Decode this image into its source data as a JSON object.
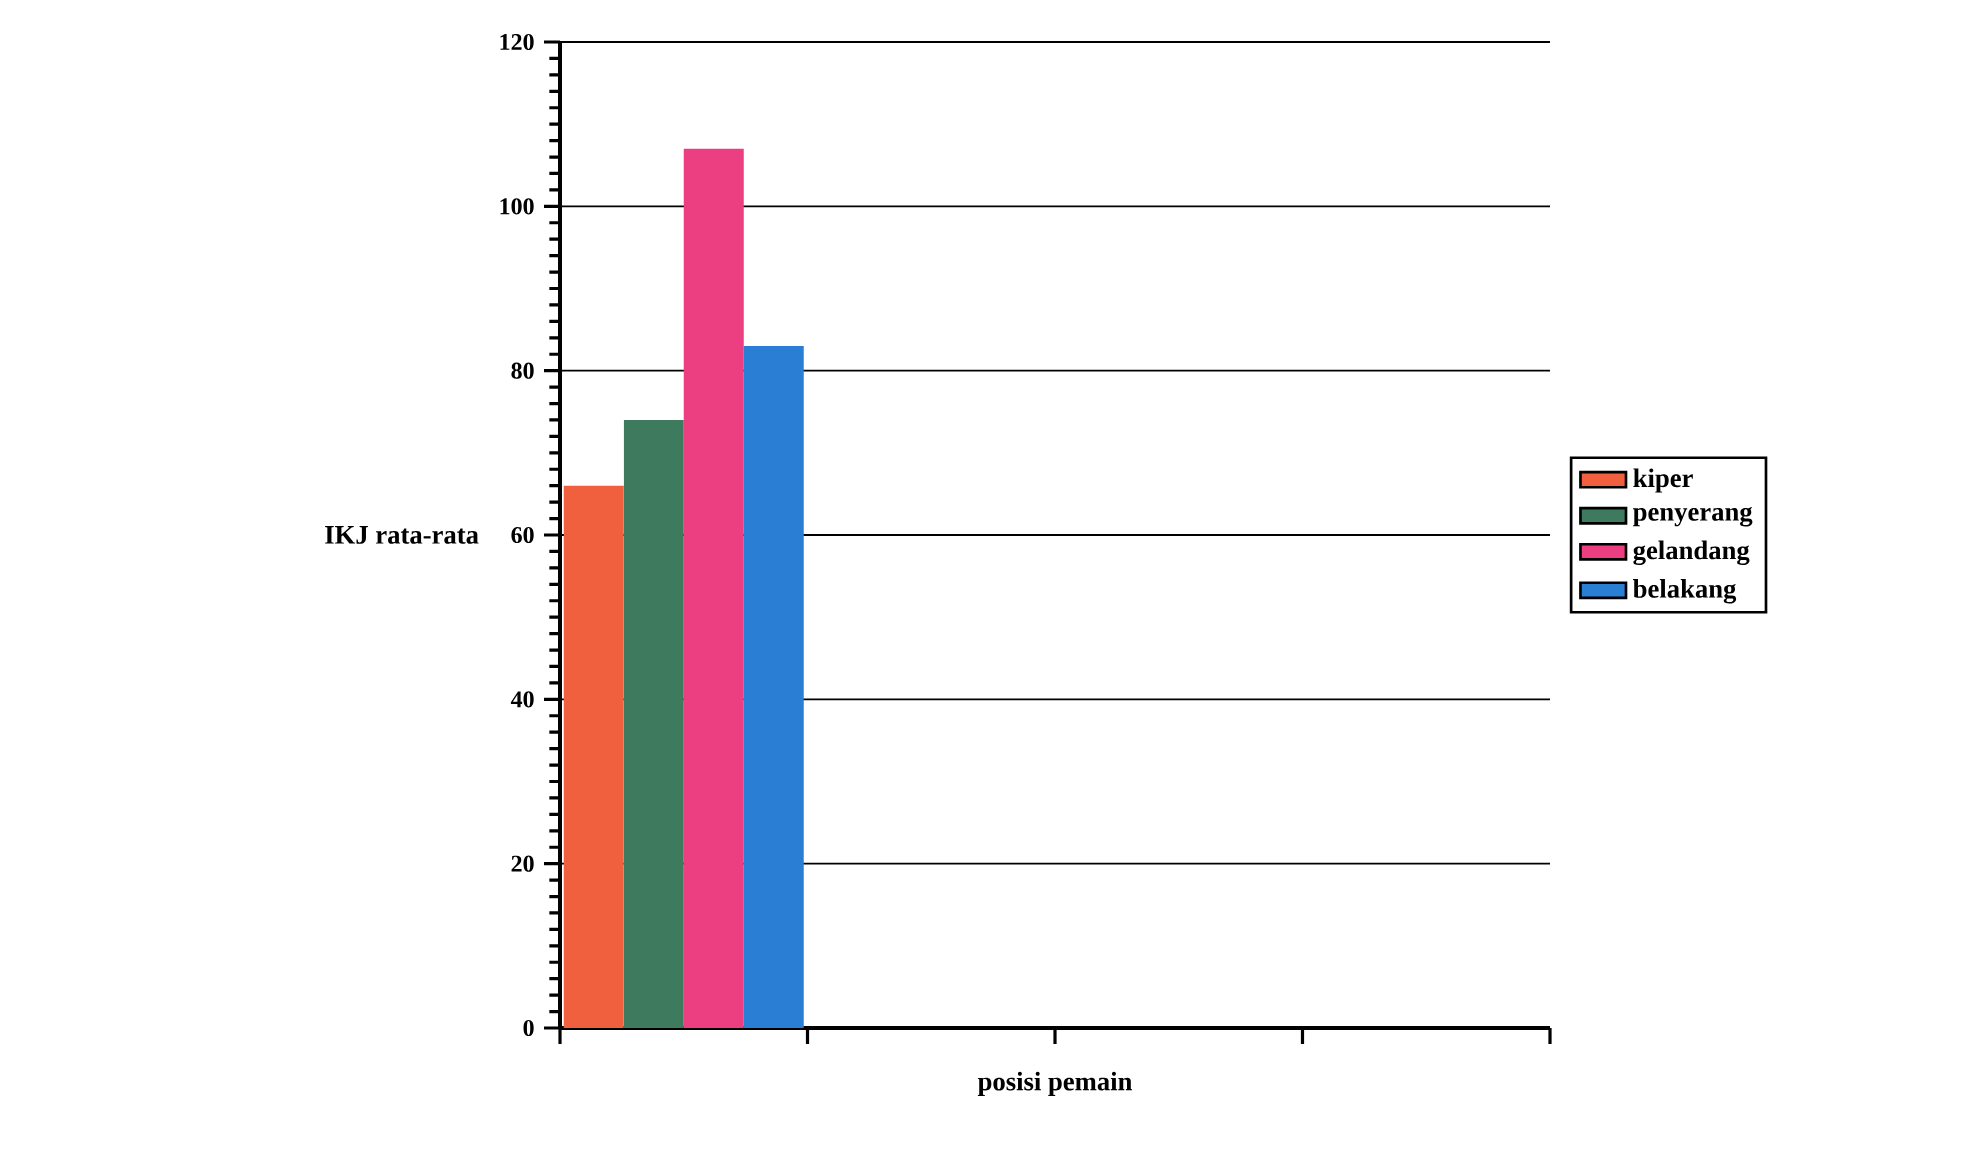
{
  "chart_data": {
    "type": "bar",
    "xlabel": "posisi pemain",
    "ylabel": "IKJ rata-rata",
    "categories": [
      null,
      null,
      null,
      null
    ],
    "series": [
      {
        "name": "kiper",
        "color": "#f0603e",
        "values": [
          66,
          null,
          null,
          null
        ]
      },
      {
        "name": "penyerang",
        "color": "#3e7a5e",
        "values": [
          74,
          null,
          null,
          null
        ]
      },
      {
        "name": "gelandang",
        "color": "#ec3f82",
        "values": [
          107,
          null,
          null,
          null
        ]
      },
      {
        "name": "belakang",
        "color": "#2a7fd4",
        "values": [
          83,
          null,
          null,
          null
        ]
      }
    ],
    "ylim": [
      0,
      120
    ],
    "yticks": [
      0,
      20,
      40,
      60,
      80,
      100,
      120
    ],
    "grid": "y",
    "legend": "right"
  }
}
